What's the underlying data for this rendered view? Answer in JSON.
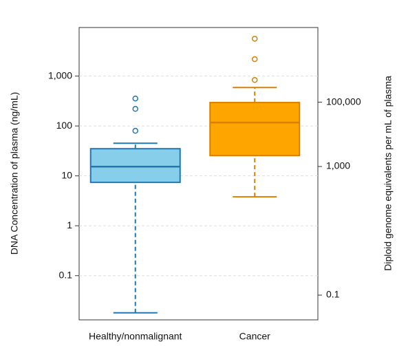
{
  "chart_data": {
    "type": "box",
    "ylabel": "DNA Concentration of plasma (ng/mL)",
    "y2label": "Diploid genome equivalents per mL of plasma",
    "categories": [
      "Healthy/nonmalignant",
      "Cancer"
    ],
    "boxes": [
      {
        "whislo": 0.018,
        "q1": 7.4,
        "med": 15.3,
        "q3": 35,
        "whishi": 45,
        "fliers": [
          80,
          220,
          355
        ],
        "color": "#87ceeb",
        "edgecolor": "#1f77b4"
      },
      {
        "whislo": 3.8,
        "q1": 25.5,
        "med": 117,
        "q3": 295,
        "whishi": 590,
        "fliers": [
          835,
          2180,
          5600
        ],
        "color": "#ffa500",
        "edgecolor": "#d98000"
      }
    ],
    "log_scale": true,
    "ylim": [
      0.013,
      9400
    ],
    "yticks": [
      0.1,
      1,
      10,
      100,
      {
        "value": 1000,
        "label": "1,000"
      }
    ],
    "y2lim": [
      0.017,
      21000000
    ],
    "y2ticks": [
      0.1,
      {
        "value": 1000,
        "label": "1,000"
      },
      {
        "value": 100000,
        "label": "100,000"
      }
    ],
    "grid": true
  }
}
